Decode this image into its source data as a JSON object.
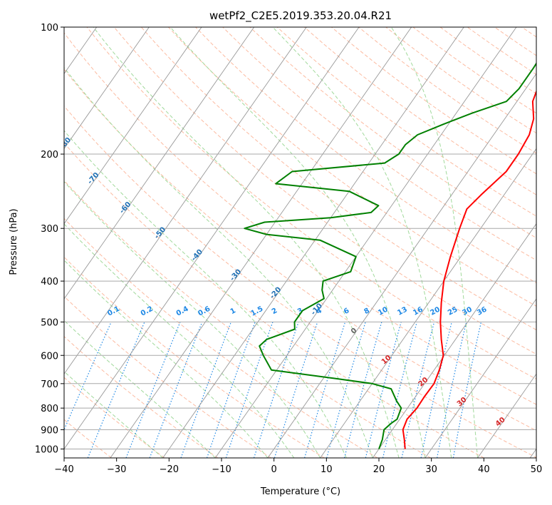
{
  "chart_data": {
    "type": "line",
    "title": "wetPf2_C2E5.2019.353.20.04.R21",
    "xlabel": "Temperature (°C)",
    "ylabel": "Pressure (hPa)",
    "xlim": [
      -40,
      50
    ],
    "ylim": [
      1050,
      100
    ],
    "y_scale": "log",
    "grid": true,
    "x_ticks": [
      -40,
      -30,
      -20,
      -10,
      0,
      10,
      20,
      30,
      40,
      50
    ],
    "y_ticks": [
      1000,
      900,
      800,
      700,
      600,
      500,
      400,
      300,
      200,
      100
    ],
    "series": [
      {
        "color": "#ff0000",
        "points": [
          [
            25.0,
            1000
          ],
          [
            23.6,
            950
          ],
          [
            22.0,
            900
          ],
          [
            21.4,
            850
          ],
          [
            21.8,
            800
          ],
          [
            21.7,
            750
          ],
          [
            21.8,
            700
          ],
          [
            21.0,
            650
          ],
          [
            19.8,
            600
          ],
          [
            17.3,
            550
          ],
          [
            14.8,
            500
          ],
          [
            12.4,
            450
          ],
          [
            10.0,
            400
          ],
          [
            8.0,
            350
          ],
          [
            6.0,
            300
          ],
          [
            4.8,
            270
          ],
          [
            5.6,
            250
          ],
          [
            7.3,
            220
          ],
          [
            7.3,
            200
          ],
          [
            6.8,
            180
          ],
          [
            5.5,
            165
          ],
          [
            3.0,
            150
          ],
          [
            1.8,
            135
          ],
          [
            2.6,
            125
          ],
          [
            5.0,
            115
          ],
          [
            7.0,
            110
          ],
          [
            10.4,
            100
          ]
        ]
      },
      {
        "color": "#008000",
        "points": [
          [
            20.0,
            1000
          ],
          [
            19.4,
            950
          ],
          [
            18.4,
            900
          ],
          [
            18.9,
            870
          ],
          [
            19.5,
            850
          ],
          [
            18.8,
            800
          ],
          [
            17.0,
            770
          ],
          [
            14.3,
            720
          ],
          [
            10.0,
            700
          ],
          [
            2.0,
            680
          ],
          [
            -11.0,
            650
          ],
          [
            -14.5,
            600
          ],
          [
            -16.5,
            570
          ],
          [
            -16.0,
            550
          ],
          [
            -12.0,
            520
          ],
          [
            -13.0,
            500
          ],
          [
            -13.0,
            470
          ],
          [
            -10.5,
            440
          ],
          [
            -12.0,
            420
          ],
          [
            -13.0,
            400
          ],
          [
            -9.0,
            380
          ],
          [
            -10.0,
            350
          ],
          [
            -19.0,
            320
          ],
          [
            -30.0,
            310
          ],
          [
            -35.0,
            300
          ],
          [
            -32.0,
            290
          ],
          [
            -20.0,
            283
          ],
          [
            -13.0,
            275
          ],
          [
            -12.5,
            265
          ],
          [
            -20.0,
            245
          ],
          [
            -35.0,
            235
          ],
          [
            -33.5,
            220
          ],
          [
            -17.0,
            210
          ],
          [
            -15.5,
            200
          ],
          [
            -15.5,
            190
          ],
          [
            -14.5,
            180
          ],
          [
            -11.0,
            170
          ],
          [
            -7.0,
            160
          ],
          [
            -2.0,
            150
          ],
          [
            -1.3,
            140
          ],
          [
            -1.3,
            125
          ],
          [
            -1.5,
            115
          ],
          [
            0.5,
            105
          ],
          [
            2.5,
            100
          ]
        ]
      }
    ],
    "dry_adiabat_labels": [
      "-100",
      "-90",
      "-80",
      "-70",
      "-60",
      "-50",
      "-40",
      "-30",
      "-20",
      "-10"
    ],
    "moist_adiabat_labels": [
      "0",
      "10",
      "20",
      "30",
      "40"
    ],
    "mixing_ratio_labels": [
      "0.1",
      "0.2",
      "0.4",
      "0.6",
      "1",
      "1.5",
      "2",
      "3",
      "4",
      "6",
      "8",
      "10",
      "13",
      "16",
      "20",
      "25",
      "30",
      "36"
    ]
  },
  "style": {
    "temperature_color": "#ff0000",
    "dewpoint_color": "#008000",
    "isotherm_color": "#999999",
    "isobar_color": "#a8a8a8",
    "dry_adiabat_color": "#fcbba1",
    "moist_adiabat_color": "#a1d99b",
    "mixing_ratio_color": "#1e88e5",
    "dry_label_color": "#2171b5",
    "moist_label_color": "#d62728"
  }
}
